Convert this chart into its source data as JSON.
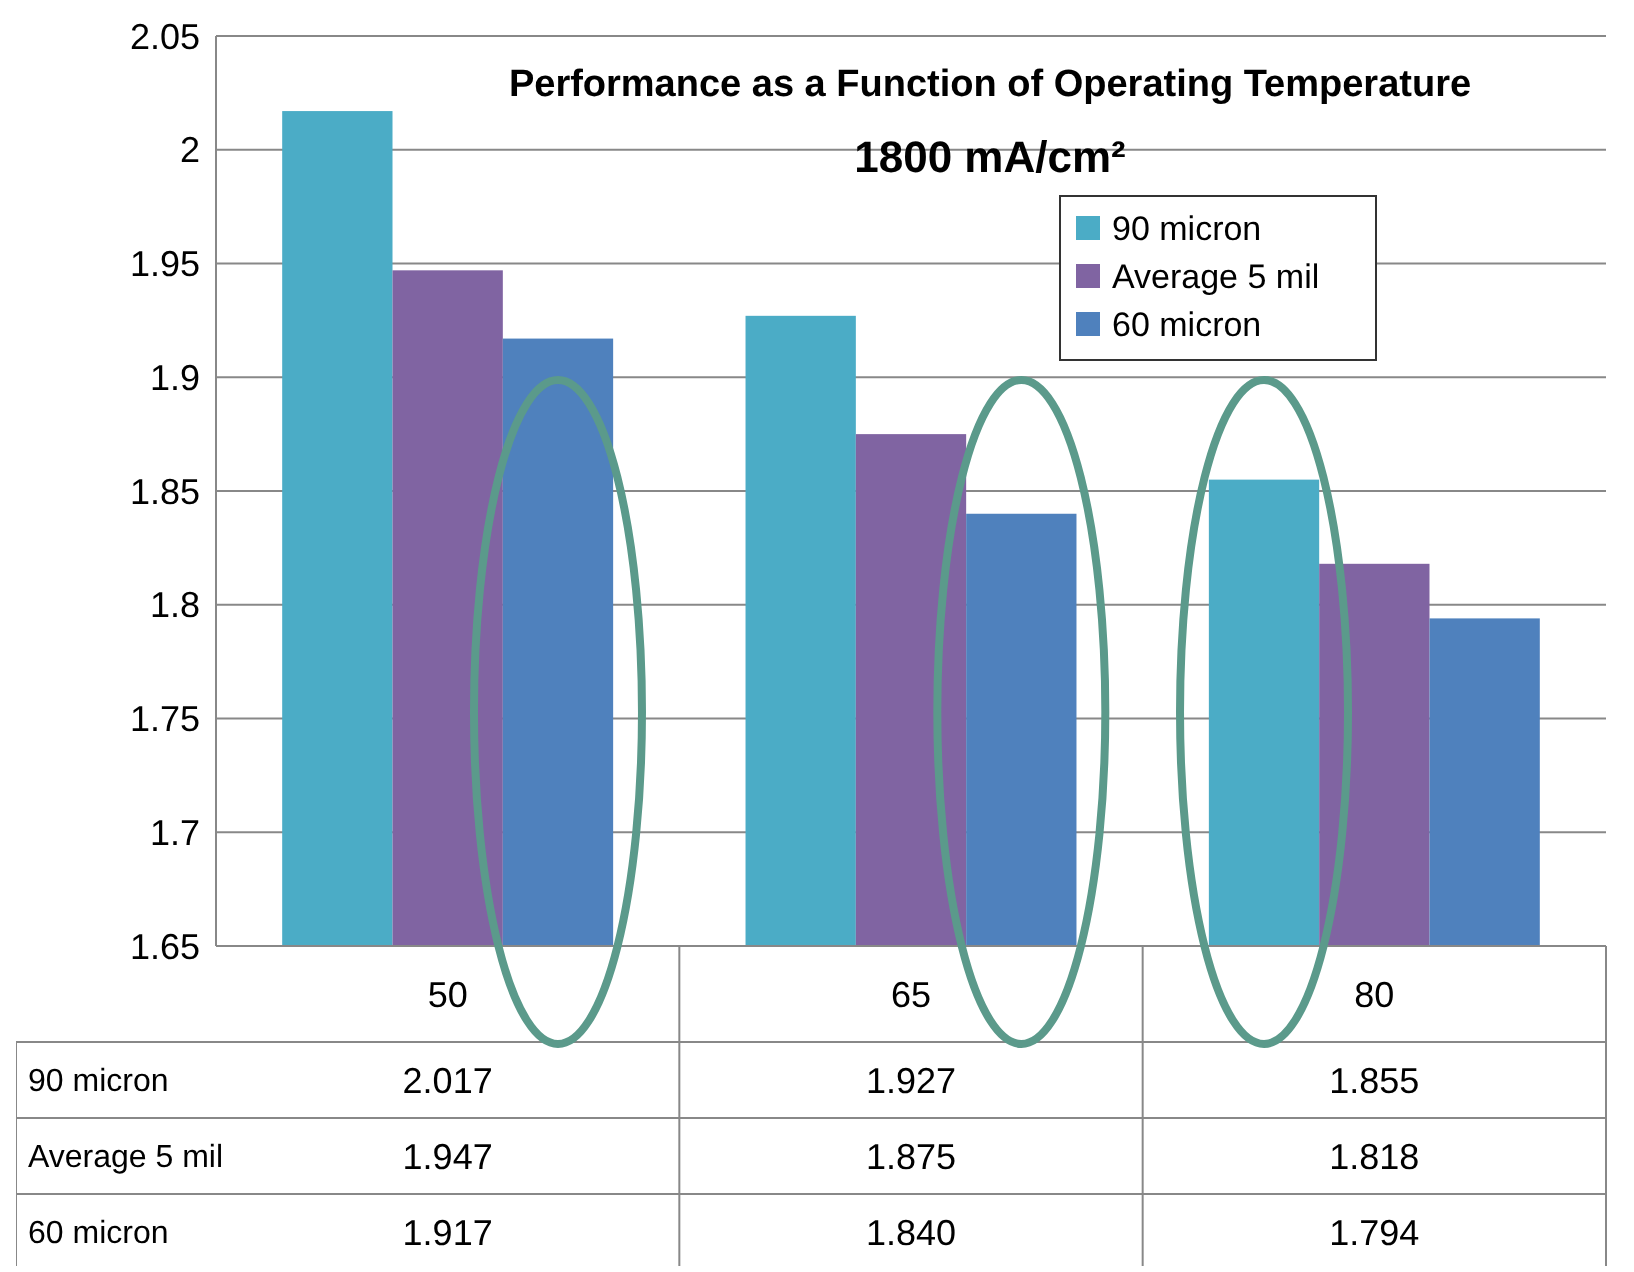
{
  "chart_data": {
    "type": "bar",
    "title": "Performance as a Function of Operating Temperature",
    "subtitle": "1800 mA/cm²",
    "categories": [
      "50",
      "65",
      "80"
    ],
    "series": [
      {
        "name": "90 micron",
        "color": "#4bacc6",
        "values": [
          2.017,
          1.927,
          1.855
        ],
        "value_labels": [
          "2.017",
          "1.927",
          "1.855"
        ]
      },
      {
        "name": "Average 5 mil",
        "color": "#8064a2",
        "values": [
          1.947,
          1.875,
          1.818
        ],
        "value_labels": [
          "1.947",
          "1.875",
          "1.818"
        ]
      },
      {
        "name": "60 micron",
        "color": "#4f81bd",
        "values": [
          1.917,
          1.84,
          1.794
        ],
        "value_labels": [
          "1.917",
          "1.840",
          "1.794"
        ]
      }
    ],
    "ylim": [
      1.65,
      2.05
    ],
    "yticks": [
      1.65,
      1.7,
      1.75,
      1.8,
      1.85,
      1.9,
      1.95,
      {
        "value": 2,
        "label": "2"
      },
      2.05
    ],
    "grid": "y",
    "legend": "top right"
  }
}
